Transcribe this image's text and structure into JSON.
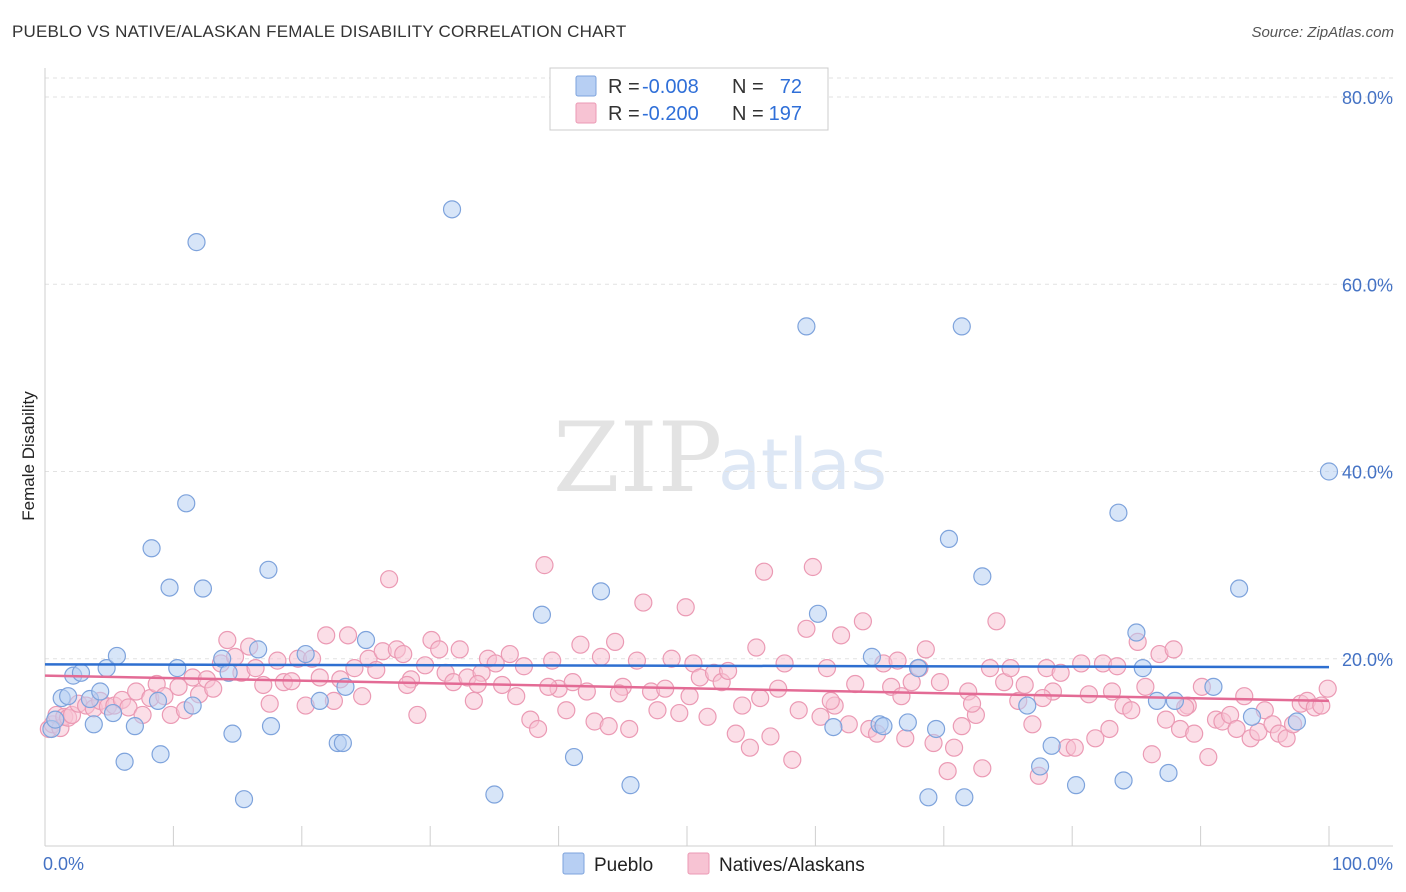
{
  "header": {
    "title": "PUEBLO VS NATIVE/ALASKAN FEMALE DISABILITY CORRELATION CHART",
    "source": "Source: ZipAtlas.com"
  },
  "watermark": {
    "zip": "ZIP",
    "atlas": "atlas"
  },
  "legend": {
    "rows": [
      {
        "r_label": "R =",
        "r_value": "-0.008",
        "n_label": "N =",
        "n_value": "72"
      },
      {
        "r_label": "R =",
        "r_value": "-0.200",
        "n_label": "N =",
        "n_value": "197"
      }
    ]
  },
  "colors": {
    "pueblo_fill": "#b7cff3",
    "pueblo_stroke": "#7ea3dc",
    "pueblo_line": "#2e6fd0",
    "native_fill": "#f7c3d3",
    "native_stroke": "#eb9ab4",
    "native_line": "#e36b95",
    "tick_text": "#4472c4"
  },
  "chart_data": {
    "type": "scatter",
    "title": "PUEBLO VS NATIVE/ALASKAN FEMALE DISABILITY CORRELATION CHART",
    "xlabel": "",
    "ylabel": "Female Disability",
    "xlim": [
      0,
      100
    ],
    "ylim": [
      0,
      80
    ],
    "x_tick_labels": [
      "0.0%",
      "100.0%"
    ],
    "y_ticks": [
      20,
      40,
      60,
      80
    ],
    "y_tick_labels": [
      "20.0%",
      "40.0%",
      "60.0%",
      "80.0%"
    ],
    "grid": true,
    "legend_position": "top-center",
    "series": [
      {
        "name": "Pueblo",
        "r": -0.008,
        "n": 72,
        "trend": {
          "x": [
            0,
            100
          ],
          "y": [
            19.4,
            19.1
          ]
        },
        "points": [
          [
            0.5,
            12.5
          ],
          [
            0.8,
            13.5
          ],
          [
            1.3,
            15.8
          ],
          [
            1.8,
            16.0
          ],
          [
            2.2,
            18.2
          ],
          [
            2.8,
            18.5
          ],
          [
            3.5,
            15.7
          ],
          [
            3.8,
            13.0
          ],
          [
            4.3,
            16.5
          ],
          [
            4.8,
            19.0
          ],
          [
            5.3,
            14.2
          ],
          [
            5.6,
            20.3
          ],
          [
            6.2,
            9.0
          ],
          [
            7.0,
            12.8
          ],
          [
            8.3,
            31.8
          ],
          [
            8.8,
            15.5
          ],
          [
            9.0,
            9.8
          ],
          [
            9.7,
            27.6
          ],
          [
            10.3,
            19.0
          ],
          [
            11.0,
            36.6
          ],
          [
            11.5,
            15.0
          ],
          [
            11.8,
            64.5
          ],
          [
            12.3,
            27.5
          ],
          [
            13.8,
            20.0
          ],
          [
            14.3,
            18.5
          ],
          [
            14.6,
            12.0
          ],
          [
            15.5,
            5.0
          ],
          [
            16.6,
            21.0
          ],
          [
            17.4,
            29.5
          ],
          [
            17.6,
            12.8
          ],
          [
            20.3,
            20.5
          ],
          [
            21.4,
            15.5
          ],
          [
            22.8,
            11.0
          ],
          [
            23.2,
            11.0
          ],
          [
            23.4,
            17.0
          ],
          [
            25.0,
            22.0
          ],
          [
            31.7,
            68.0
          ],
          [
            35.0,
            5.5
          ],
          [
            38.7,
            24.7
          ],
          [
            41.2,
            9.5
          ],
          [
            43.3,
            27.2
          ],
          [
            45.6,
            6.5
          ],
          [
            59.3,
            55.5
          ],
          [
            60.2,
            24.8
          ],
          [
            61.4,
            12.7
          ],
          [
            64.4,
            20.2
          ],
          [
            65.0,
            13.0
          ],
          [
            65.3,
            12.8
          ],
          [
            67.2,
            13.2
          ],
          [
            68.0,
            19.0
          ],
          [
            68.8,
            5.2
          ],
          [
            69.4,
            12.5
          ],
          [
            70.4,
            32.8
          ],
          [
            71.4,
            55.5
          ],
          [
            71.6,
            5.2
          ],
          [
            73.0,
            28.8
          ],
          [
            76.5,
            15.0
          ],
          [
            77.5,
            8.5
          ],
          [
            78.4,
            10.7
          ],
          [
            80.3,
            6.5
          ],
          [
            83.6,
            35.6
          ],
          [
            84.0,
            7.0
          ],
          [
            85.0,
            22.8
          ],
          [
            85.5,
            19.0
          ],
          [
            86.6,
            15.5
          ],
          [
            87.5,
            7.8
          ],
          [
            88.0,
            15.5
          ],
          [
            91.0,
            17.0
          ],
          [
            93.0,
            27.5
          ],
          [
            94.0,
            13.8
          ],
          [
            97.5,
            13.3
          ],
          [
            100.0,
            40.0
          ]
        ]
      },
      {
        "name": "Natives/Alaskans",
        "r": -0.2,
        "n": 197,
        "trend": {
          "x": [
            0,
            100
          ],
          "y": [
            18.2,
            15.5
          ]
        },
        "points": [
          [
            0.3,
            12.5
          ],
          [
            0.6,
            13.0
          ],
          [
            0.9,
            14.0
          ],
          [
            1.2,
            12.6
          ],
          [
            1.5,
            13.8
          ],
          [
            1.8,
            13.7
          ],
          [
            2.1,
            14.0
          ],
          [
            2.6,
            15.2
          ],
          [
            3.2,
            15.0
          ],
          [
            3.8,
            14.7
          ],
          [
            4.3,
            15.5
          ],
          [
            4.9,
            14.9
          ],
          [
            5.4,
            15.0
          ],
          [
            6.0,
            15.6
          ],
          [
            6.5,
            14.8
          ],
          [
            7.1,
            16.5
          ],
          [
            7.6,
            14.0
          ],
          [
            8.2,
            15.8
          ],
          [
            8.7,
            17.3
          ],
          [
            9.3,
            16.0
          ],
          [
            9.8,
            14.0
          ],
          [
            10.4,
            17.0
          ],
          [
            10.9,
            14.5
          ],
          [
            11.5,
            18.0
          ],
          [
            12.0,
            16.2
          ],
          [
            12.6,
            17.8
          ],
          [
            13.1,
            16.8
          ],
          [
            13.7,
            19.5
          ],
          [
            14.2,
            22.0
          ],
          [
            14.8,
            20.2
          ],
          [
            15.3,
            18.5
          ],
          [
            15.9,
            21.3
          ],
          [
            16.4,
            19.0
          ],
          [
            17.0,
            17.2
          ],
          [
            17.5,
            15.2
          ],
          [
            18.1,
            19.8
          ],
          [
            18.6,
            17.5
          ],
          [
            19.2,
            17.6
          ],
          [
            19.7,
            20.0
          ],
          [
            20.3,
            15.0
          ],
          [
            20.8,
            20.0
          ],
          [
            21.4,
            18.0
          ],
          [
            21.9,
            22.5
          ],
          [
            22.5,
            15.5
          ],
          [
            23.0,
            17.8
          ],
          [
            23.6,
            22.5
          ],
          [
            24.1,
            19.0
          ],
          [
            24.7,
            16.0
          ],
          [
            25.2,
            20.0
          ],
          [
            25.8,
            18.8
          ],
          [
            26.3,
            20.8
          ],
          [
            26.8,
            28.5
          ],
          [
            27.4,
            21.0
          ],
          [
            27.9,
            20.5
          ],
          [
            28.5,
            17.8
          ],
          [
            29.0,
            14.0
          ],
          [
            29.6,
            19.3
          ],
          [
            30.1,
            22.0
          ],
          [
            30.7,
            21.0
          ],
          [
            31.2,
            18.5
          ],
          [
            31.8,
            17.5
          ],
          [
            32.3,
            21.0
          ],
          [
            32.9,
            18.0
          ],
          [
            33.4,
            15.5
          ],
          [
            34.0,
            18.5
          ],
          [
            34.5,
            20.0
          ],
          [
            35.1,
            19.5
          ],
          [
            35.6,
            17.2
          ],
          [
            36.2,
            20.5
          ],
          [
            36.7,
            16.0
          ],
          [
            37.3,
            19.2
          ],
          [
            37.8,
            13.5
          ],
          [
            38.4,
            12.5
          ],
          [
            38.9,
            30.0
          ],
          [
            39.5,
            19.8
          ],
          [
            40.0,
            16.8
          ],
          [
            40.6,
            14.5
          ],
          [
            41.1,
            17.5
          ],
          [
            41.7,
            21.5
          ],
          [
            42.2,
            16.5
          ],
          [
            42.8,
            13.3
          ],
          [
            43.3,
            20.2
          ],
          [
            43.9,
            12.8
          ],
          [
            44.4,
            21.8
          ],
          [
            45.0,
            17.0
          ],
          [
            45.5,
            12.5
          ],
          [
            46.1,
            19.8
          ],
          [
            46.6,
            26.0
          ],
          [
            47.2,
            16.5
          ],
          [
            47.7,
            14.5
          ],
          [
            48.3,
            16.8
          ],
          [
            48.8,
            20.0
          ],
          [
            49.4,
            14.2
          ],
          [
            49.9,
            25.5
          ],
          [
            50.5,
            19.5
          ],
          [
            51.0,
            18.0
          ],
          [
            51.6,
            13.8
          ],
          [
            52.1,
            18.5
          ],
          [
            52.7,
            17.5
          ],
          [
            53.2,
            18.7
          ],
          [
            53.8,
            12.0
          ],
          [
            54.3,
            15.0
          ],
          [
            54.9,
            10.5
          ],
          [
            55.4,
            21.2
          ],
          [
            56.0,
            29.3
          ],
          [
            56.5,
            11.7
          ],
          [
            57.1,
            16.8
          ],
          [
            57.6,
            19.5
          ],
          [
            58.2,
            9.2
          ],
          [
            58.7,
            14.5
          ],
          [
            59.3,
            23.2
          ],
          [
            59.8,
            29.8
          ],
          [
            60.4,
            13.8
          ],
          [
            60.9,
            19.0
          ],
          [
            61.5,
            15.0
          ],
          [
            62.0,
            22.5
          ],
          [
            62.6,
            13.0
          ],
          [
            63.1,
            17.3
          ],
          [
            63.7,
            24.0
          ],
          [
            64.2,
            12.5
          ],
          [
            64.8,
            12.0
          ],
          [
            65.3,
            19.5
          ],
          [
            65.9,
            17.0
          ],
          [
            66.4,
            19.8
          ],
          [
            67.0,
            11.5
          ],
          [
            67.5,
            17.5
          ],
          [
            68.1,
            19.0
          ],
          [
            68.6,
            21.0
          ],
          [
            69.2,
            11.0
          ],
          [
            69.7,
            17.5
          ],
          [
            70.3,
            8.0
          ],
          [
            70.8,
            10.5
          ],
          [
            71.4,
            12.8
          ],
          [
            71.9,
            16.5
          ],
          [
            72.5,
            14.0
          ],
          [
            73.0,
            8.3
          ],
          [
            73.6,
            19.0
          ],
          [
            74.1,
            24.0
          ],
          [
            74.7,
            17.5
          ],
          [
            75.2,
            19.0
          ],
          [
            75.8,
            15.5
          ],
          [
            76.3,
            17.2
          ],
          [
            76.9,
            13.0
          ],
          [
            77.4,
            7.5
          ],
          [
            78.0,
            19.0
          ],
          [
            78.5,
            16.5
          ],
          [
            79.1,
            18.5
          ],
          [
            79.6,
            10.5
          ],
          [
            80.2,
            10.5
          ],
          [
            80.7,
            19.5
          ],
          [
            81.3,
            16.2
          ],
          [
            81.8,
            11.5
          ],
          [
            82.4,
            19.5
          ],
          [
            82.9,
            12.5
          ],
          [
            83.5,
            19.2
          ],
          [
            84.0,
            15.0
          ],
          [
            84.6,
            14.5
          ],
          [
            85.1,
            21.8
          ],
          [
            85.7,
            17.0
          ],
          [
            86.2,
            9.8
          ],
          [
            86.8,
            20.5
          ],
          [
            87.3,
            13.5
          ],
          [
            87.9,
            21.0
          ],
          [
            88.4,
            12.5
          ],
          [
            89.0,
            15.0
          ],
          [
            89.5,
            12.0
          ],
          [
            90.1,
            17.0
          ],
          [
            90.6,
            9.5
          ],
          [
            91.2,
            13.5
          ],
          [
            91.7,
            13.3
          ],
          [
            92.3,
            14.0
          ],
          [
            92.8,
            12.5
          ],
          [
            93.4,
            16.0
          ],
          [
            93.9,
            11.5
          ],
          [
            94.5,
            12.2
          ],
          [
            95.0,
            14.5
          ],
          [
            95.6,
            13.0
          ],
          [
            96.1,
            12.0
          ],
          [
            96.7,
            11.5
          ],
          [
            97.2,
            13.0
          ],
          [
            97.8,
            15.2
          ],
          [
            98.3,
            15.5
          ],
          [
            98.9,
            14.8
          ],
          [
            99.4,
            15.0
          ],
          [
            99.9,
            16.8
          ],
          [
            88.8,
            14.8
          ],
          [
            83.1,
            16.5
          ],
          [
            77.7,
            15.8
          ],
          [
            72.2,
            15.2
          ],
          [
            66.7,
            16.0
          ],
          [
            61.2,
            15.5
          ],
          [
            55.7,
            15.8
          ],
          [
            50.2,
            16.0
          ],
          [
            44.7,
            16.3
          ],
          [
            39.2,
            17.0
          ],
          [
            33.7,
            17.3
          ],
          [
            28.2,
            17.2
          ]
        ]
      }
    ]
  },
  "bottom_legend": {
    "items": [
      "Pueblo",
      "Natives/Alaskans"
    ]
  }
}
